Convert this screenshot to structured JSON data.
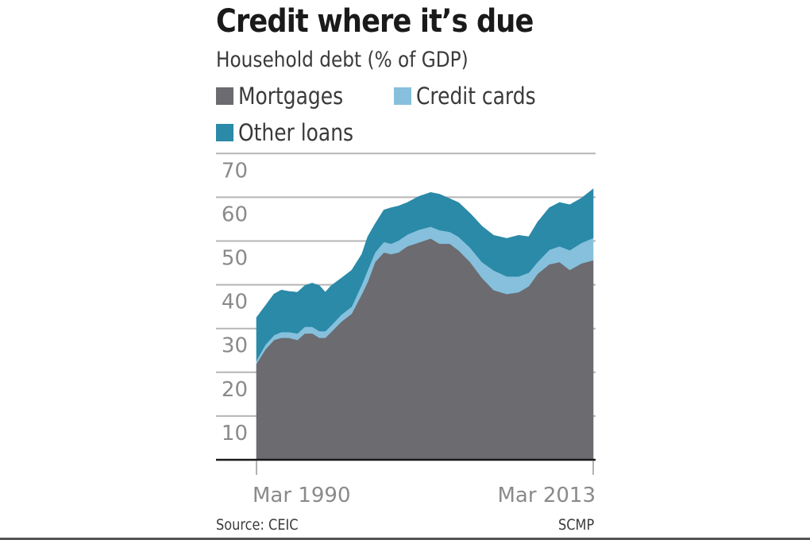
{
  "header": {
    "title": "Credit where it’s due",
    "subtitle": "Household debt (% of GDP)"
  },
  "legend": [
    {
      "label": "Mortgages",
      "color": "#6b6b70"
    },
    {
      "label": "Credit cards",
      "color": "#86c0dc"
    },
    {
      "label": "Other loans",
      "color": "#2a8aa8"
    }
  ],
  "footer": {
    "source": "Source: CEIC",
    "credit": "SCMP"
  },
  "chart_data": {
    "type": "area",
    "stacked": true,
    "title": "Credit where it’s due",
    "subtitle": "Household debt (% of GDP)",
    "xlabel": "",
    "ylabel": "",
    "x_tick_labels": [
      "Mar 1990",
      "Mar 2013"
    ],
    "y_ticks": [
      10,
      20,
      30,
      40,
      50,
      60,
      70
    ],
    "ylim": [
      0,
      70
    ],
    "grid": true,
    "legend_position": "top",
    "x": [
      1990.2,
      1990.8,
      1991.4,
      1991.9,
      1992.4,
      1993.0,
      1993.5,
      1994.0,
      1994.5,
      1994.9,
      1995.3,
      1996.0,
      1996.7,
      1997.4,
      1997.8,
      1998.3,
      1998.9,
      1999.4,
      1999.9,
      2000.5,
      2001.3,
      2002.1,
      2002.7,
      2003.4,
      2004.0,
      2004.8,
      2005.6,
      2006.4,
      2007.3,
      2008.1,
      2008.8,
      2009.4,
      2010.2,
      2010.9,
      2011.6,
      2012.4,
      2013.2
    ],
    "series": [
      {
        "name": "Mortgages",
        "values": [
          22.0,
          25.2,
          27.4,
          27.9,
          27.9,
          27.4,
          28.9,
          28.9,
          27.9,
          27.9,
          29.2,
          31.6,
          33.4,
          37.9,
          40.7,
          45.2,
          47.4,
          47.0,
          47.4,
          48.8,
          49.7,
          50.6,
          49.4,
          49.4,
          47.9,
          45.2,
          41.6,
          38.8,
          37.9,
          38.3,
          39.7,
          42.5,
          44.7,
          45.2,
          43.4,
          44.9,
          45.6
        ]
      },
      {
        "name": "Credit cards",
        "values": [
          0.7,
          1.1,
          1.1,
          1.3,
          1.3,
          1.5,
          1.5,
          1.5,
          1.5,
          1.5,
          1.5,
          1.6,
          1.6,
          2.2,
          2.7,
          2.2,
          2.4,
          2.4,
          2.7,
          2.7,
          2.9,
          2.7,
          3.1,
          2.7,
          3.1,
          3.3,
          3.6,
          4.5,
          4.0,
          3.6,
          3.1,
          2.7,
          3.3,
          3.6,
          4.5,
          4.7,
          5.1
        ]
      },
      {
        "name": "Other loans",
        "values": [
          9.8,
          8.9,
          9.4,
          9.6,
          9.3,
          9.4,
          9.4,
          10.0,
          10.4,
          8.9,
          9.1,
          8.3,
          8.3,
          6.9,
          7.6,
          6.5,
          7.3,
          8.2,
          7.9,
          7.3,
          7.6,
          7.8,
          8.2,
          7.6,
          7.8,
          7.8,
          8.2,
          8.0,
          8.7,
          9.4,
          8.2,
          9.1,
          9.6,
          10.0,
          10.4,
          10.2,
          11.2
        ]
      }
    ]
  }
}
